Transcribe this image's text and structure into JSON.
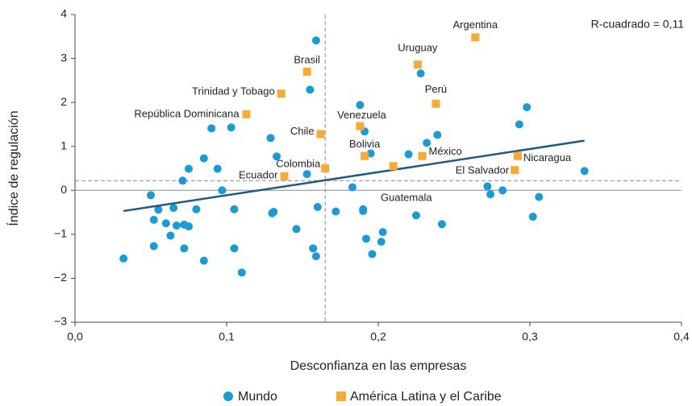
{
  "chart_data": {
    "type": "scatter",
    "annotation": "R-cuadrado = 0,11",
    "x_label": "Desconfianza en las empresas",
    "y_label": "Índice de regulación",
    "xlim": [
      0,
      0.4
    ],
    "ylim": [
      -3,
      4
    ],
    "xticks": [
      {
        "value": 0,
        "label": "0,0"
      },
      {
        "value": 0.1,
        "label": "0,1"
      },
      {
        "value": 0.2,
        "label": "0,2"
      },
      {
        "value": 0.3,
        "label": "0,3"
      },
      {
        "value": 0.4,
        "label": "0,4"
      }
    ],
    "yticks": [
      {
        "value": -3,
        "label": "−3"
      },
      {
        "value": -2,
        "label": "−2"
      },
      {
        "value": -1,
        "label": "−1"
      },
      0,
      1,
      2,
      3,
      4
    ],
    "zero_line": true,
    "reference_lines": {
      "x": 0.165,
      "y": 0.22
    },
    "trendline": {
      "color": "#1f5a85",
      "x": [
        0.032,
        0.336
      ],
      "values": [
        -0.47,
        1.13
      ]
    },
    "legend": "bottom",
    "series": [
      {
        "name": "Mundo",
        "color": "#1b9ad6",
        "x": [
          0.159,
          0.155,
          0.188,
          0.228,
          0.298,
          0.293,
          0.09,
          0.103,
          0.129,
          0.191,
          0.239,
          0.232,
          0.22,
          0.195,
          0.085,
          0.075,
          0.071,
          0.094,
          0.133,
          0.153,
          0.097,
          0.183,
          0.05,
          0.272,
          0.274,
          0.282,
          0.306,
          0.302,
          0.336,
          0.052,
          0.055,
          0.06,
          0.065,
          0.067,
          0.063,
          0.052,
          0.072,
          0.075,
          0.08,
          0.072,
          0.085,
          0.032,
          0.11,
          0.105,
          0.105,
          0.13,
          0.131,
          0.146,
          0.16,
          0.157,
          0.159,
          0.172,
          0.19,
          0.19,
          0.192,
          0.196,
          0.203,
          0.202,
          0.225,
          0.242
        ],
        "values": [
          3.41,
          2.29,
          1.94,
          2.66,
          1.89,
          1.5,
          1.41,
          1.43,
          1.19,
          1.34,
          1.26,
          1.08,
          0.82,
          0.84,
          0.73,
          0.49,
          0.22,
          0.49,
          0.77,
          0.37,
          0.0,
          0.07,
          -0.11,
          0.09,
          -0.09,
          -0.0,
          -0.15,
          -0.6,
          0.44,
          -0.67,
          -0.44,
          -0.75,
          -0.4,
          -0.8,
          -1.03,
          -1.27,
          -0.78,
          -0.82,
          -0.43,
          -1.32,
          -1.6,
          -1.55,
          -1.87,
          -1.32,
          -0.43,
          -0.52,
          -0.49,
          -0.88,
          -0.38,
          -1.32,
          -1.5,
          -0.48,
          -0.43,
          -0.47,
          -1.1,
          -1.45,
          -0.95,
          -1.17,
          -0.57,
          -0.77
        ]
      },
      {
        "name": "América Latina y el Caribe",
        "color": "#f7aa35",
        "labels": [
          "Argentina",
          "Uruguay",
          "Brasil",
          "Trinidad y Tobago",
          "Perú",
          "República Dominicana",
          "Venezuela",
          "Chile",
          "Bolivia",
          "México",
          "Nicaragua",
          "El Salvador",
          "Colombia",
          "Ecuador",
          "Guatemala"
        ],
        "x": [
          0.264,
          0.226,
          0.153,
          0.136,
          0.238,
          0.113,
          0.188,
          0.162,
          0.191,
          0.229,
          0.292,
          0.29,
          0.165,
          0.138,
          0.21
        ],
        "values": [
          3.48,
          2.86,
          2.7,
          2.2,
          1.97,
          1.73,
          1.46,
          1.28,
          0.78,
          0.78,
          0.78,
          0.46,
          0.5,
          0.32,
          0.55
        ]
      }
    ]
  }
}
